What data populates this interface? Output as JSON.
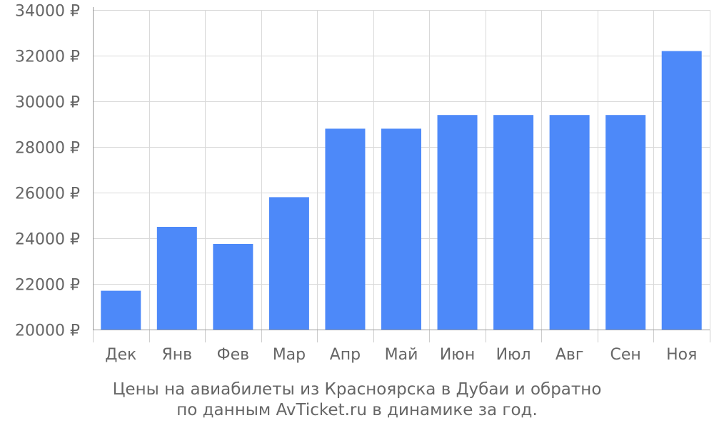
{
  "chart_data": {
    "type": "bar",
    "categories": [
      "Дек",
      "Янв",
      "Фев",
      "Мар",
      "Апр",
      "Май",
      "Июн",
      "Июл",
      "Авг",
      "Сен",
      "Ноя"
    ],
    "values": [
      21700,
      24500,
      23750,
      25800,
      28800,
      28800,
      29400,
      29400,
      29400,
      29400,
      32200
    ],
    "ylim": [
      20000,
      34000
    ],
    "yticks": [
      20000,
      22000,
      24000,
      26000,
      28000,
      30000,
      32000,
      34000
    ],
    "ytick_labels": [
      "20000 ₽",
      "22000 ₽",
      "24000 ₽",
      "26000 ₽",
      "28000 ₽",
      "30000 ₽",
      "32000 ₽",
      "34000 ₽"
    ],
    "grid": true,
    "bar_color": "#4d89f9",
    "caption": [
      "Цены на авиабилеты из Красноярска в Дубаи и обратно",
      "по данным AvTicket.ru в динамике за год."
    ]
  }
}
